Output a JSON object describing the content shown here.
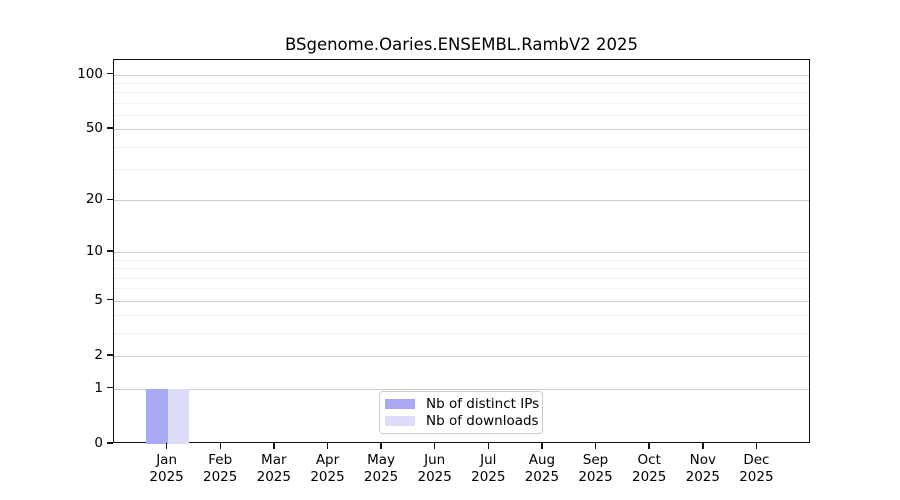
{
  "page": {
    "background_color": "#ffffff"
  },
  "chart_data": {
    "type": "bar",
    "title": "BSgenome.Oaries.ENSEMBL.RambV2 2025",
    "xlabel": "",
    "ylabel": "",
    "categories": [
      "Jan",
      "Feb",
      "Mar",
      "Apr",
      "May",
      "Jun",
      "Jul",
      "Aug",
      "Sep",
      "Oct",
      "Nov",
      "Dec"
    ],
    "category_year": "2025",
    "series": [
      {
        "name": "Nb of distinct IPs",
        "color": "#a9a9f6",
        "values": [
          1,
          0,
          0,
          0,
          0,
          0,
          0,
          0,
          0,
          0,
          0,
          0
        ]
      },
      {
        "name": "Nb of downloads",
        "color": "#dcdcf8",
        "values": [
          1,
          0,
          0,
          0,
          0,
          0,
          0,
          0,
          0,
          0,
          0,
          0
        ]
      }
    ],
    "y_axis": {
      "scale": "log10(1+x)",
      "ticks": [
        0,
        1,
        2,
        5,
        10,
        20,
        50,
        100
      ],
      "tick_labels": [
        "0",
        "1",
        "2",
        "5",
        "10",
        "20",
        "50",
        "100"
      ],
      "minor_ticks": [
        3,
        4,
        6,
        7,
        8,
        9,
        30,
        40,
        60,
        70,
        80,
        90
      ],
      "top_value": 120
    },
    "legend": {
      "position": "lower center",
      "labels": [
        "Nb of distinct IPs",
        "Nb of downloads"
      ]
    },
    "grid": {
      "major_color": "#cdcdcd",
      "minor_color": "#f0f0f0"
    }
  }
}
